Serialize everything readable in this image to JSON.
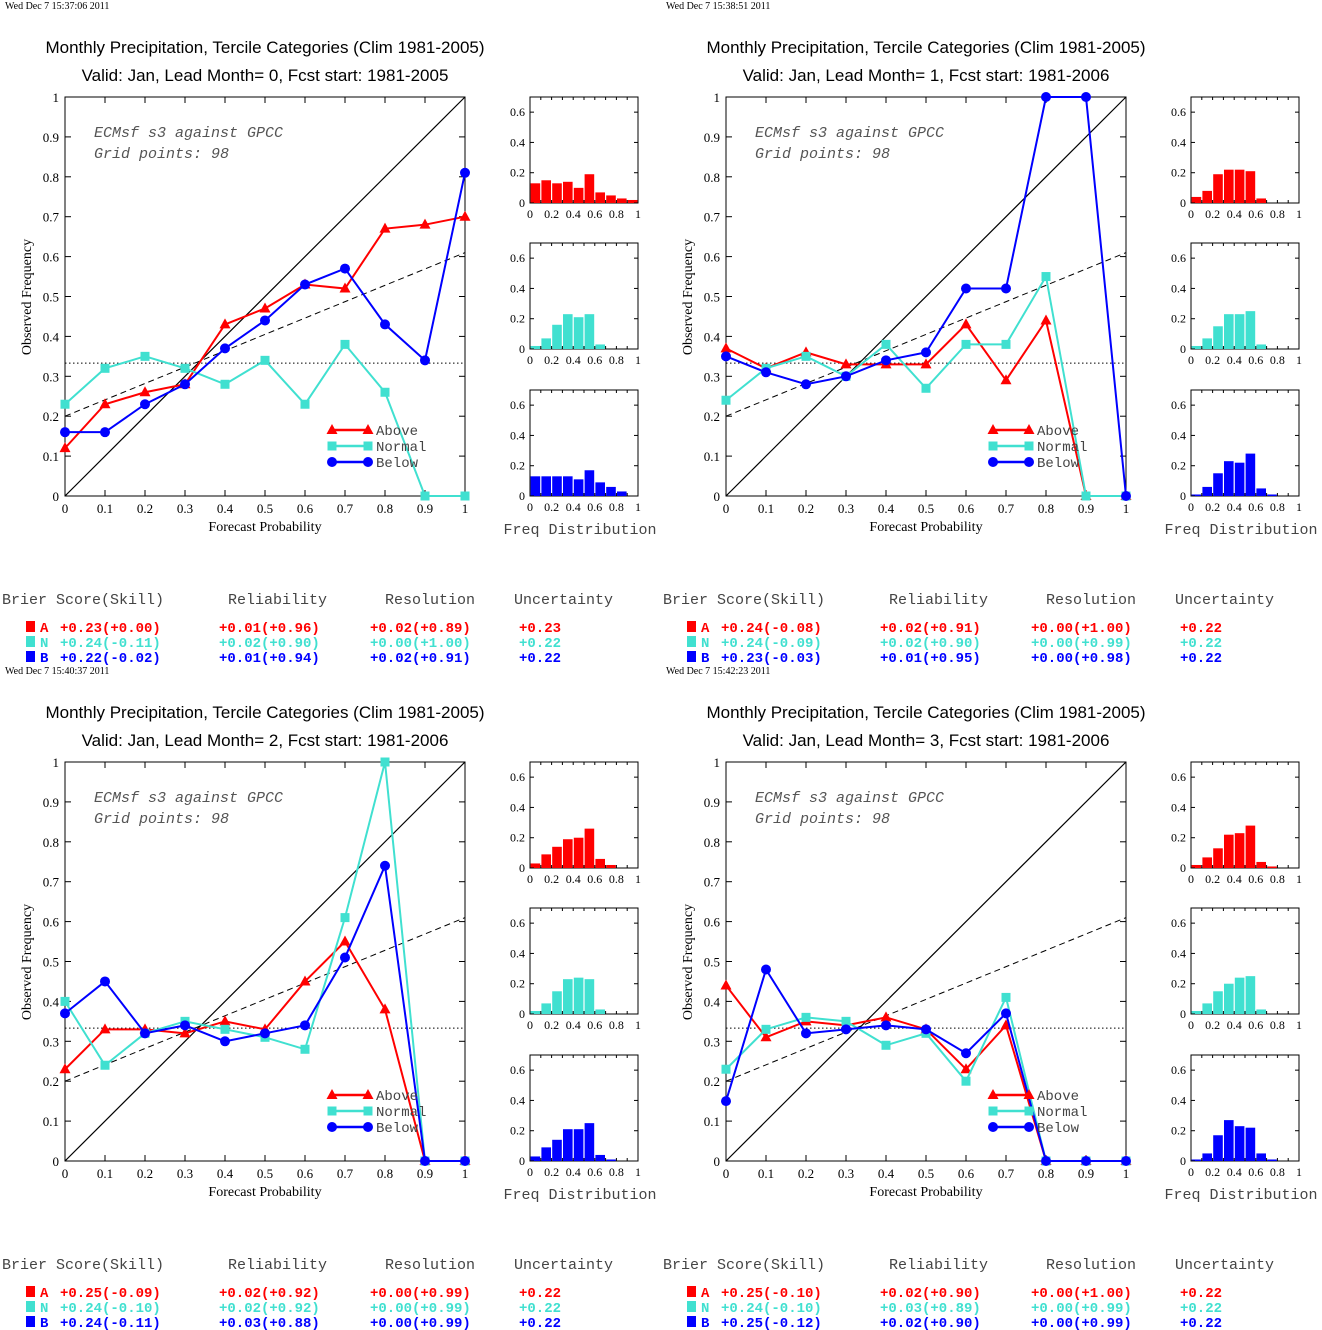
{
  "colors": {
    "above": "#ff0000",
    "normal": "#40e0d0",
    "below": "#0000ff"
  },
  "chart_data": [
    {
      "type": "line",
      "timestamp": "Wed Dec  7 15:37:06 2011",
      "title": "Monthly Precipitation, Tercile Categories (Clim 1981-2005)",
      "subtitle": "Valid: Jan, Lead Month= 0, Fcst start: 1981-2005",
      "annotation": [
        "ECMsf s3 against GPCC",
        "Grid points:    98"
      ],
      "xlabel": "Forecast Probability",
      "ylabel": "Observed Frequency",
      "xlim": [
        0,
        1
      ],
      "ylim": [
        0,
        1
      ],
      "x": [
        0,
        0.1,
        0.2,
        0.3,
        0.4,
        0.5,
        0.6,
        0.7,
        0.8,
        0.9,
        1
      ],
      "series": [
        {
          "name": "Above",
          "color": "#ff0000",
          "marker": "triangle",
          "values": [
            0.12,
            0.23,
            0.26,
            0.28,
            0.43,
            0.47,
            0.53,
            0.52,
            0.67,
            0.68,
            0.7
          ]
        },
        {
          "name": "Normal",
          "color": "#40e0d0",
          "marker": "square",
          "values": [
            0.23,
            0.32,
            0.35,
            0.32,
            0.28,
            0.34,
            0.23,
            0.38,
            0.26,
            0.0,
            0.0
          ]
        },
        {
          "name": "Below",
          "color": "#0000ff",
          "marker": "circle",
          "values": [
            0.16,
            0.16,
            0.23,
            0.28,
            0.37,
            0.44,
            0.53,
            0.57,
            0.43,
            0.34,
            0.81
          ]
        }
      ],
      "reference_lines": {
        "diagonal": [
          [
            0,
            0
          ],
          [
            1,
            1
          ]
        ],
        "climatology": 0.333,
        "skill": [
          [
            0,
            0.2
          ],
          [
            1,
            0.61
          ]
        ]
      },
      "freq_distribution": {
        "xlabel": "Freq Distribution",
        "bins": [
          0,
          0.1,
          0.2,
          0.3,
          0.4,
          0.5,
          0.6,
          0.7,
          0.8,
          0.9
        ],
        "above": [
          0.13,
          0.15,
          0.13,
          0.14,
          0.1,
          0.19,
          0.07,
          0.05,
          0.03,
          0.02
        ],
        "normal": [
          0.02,
          0.07,
          0.16,
          0.23,
          0.21,
          0.23,
          0.03,
          0.0,
          0.0,
          0.0
        ],
        "below": [
          0.13,
          0.13,
          0.13,
          0.13,
          0.11,
          0.17,
          0.09,
          0.06,
          0.03,
          0.0
        ]
      },
      "scores": {
        "header": [
          "Brier Score(Skill)",
          "Reliability",
          "Resolution",
          "Uncertainty"
        ],
        "rows": [
          {
            "cat": "A",
            "brier": "+0.23(+0.00)",
            "rel": "+0.01(+0.96)",
            "res": "+0.02(+0.89)",
            "unc": "+0.23"
          },
          {
            "cat": "N",
            "brier": "+0.24(-0.11)",
            "rel": "+0.02(+0.90)",
            "res": "+0.00(+1.00)",
            "unc": "+0.22"
          },
          {
            "cat": "B",
            "brier": "+0.22(-0.02)",
            "rel": "+0.01(+0.94)",
            "res": "+0.02(+0.91)",
            "unc": "+0.22"
          }
        ]
      }
    },
    {
      "type": "line",
      "timestamp": "Wed Dec  7 15:38:51 2011",
      "title": "Monthly Precipitation, Tercile Categories (Clim 1981-2005)",
      "subtitle": "Valid: Jan, Lead Month= 1, Fcst start: 1981-2006",
      "annotation": [
        "ECMsf s3 against GPCC",
        "Grid points:    98"
      ],
      "xlabel": "Forecast Probability",
      "ylabel": "Observed Frequency",
      "xlim": [
        0,
        1
      ],
      "ylim": [
        0,
        1
      ],
      "x": [
        0,
        0.1,
        0.2,
        0.3,
        0.4,
        0.5,
        0.6,
        0.7,
        0.8,
        0.9,
        1
      ],
      "series": [
        {
          "name": "Above",
          "color": "#ff0000",
          "marker": "triangle",
          "values": [
            0.37,
            0.32,
            0.36,
            0.33,
            0.33,
            0.33,
            0.43,
            0.29,
            0.44,
            0.0,
            0.0
          ]
        },
        {
          "name": "Normal",
          "color": "#40e0d0",
          "marker": "square",
          "values": [
            0.24,
            0.32,
            0.35,
            0.3,
            0.38,
            0.27,
            0.38,
            0.38,
            0.55,
            0.0,
            0.0
          ]
        },
        {
          "name": "Below",
          "color": "#0000ff",
          "marker": "circle",
          "values": [
            0.35,
            0.31,
            0.28,
            0.3,
            0.34,
            0.36,
            0.52,
            0.52,
            1.0,
            1.0,
            0.0
          ]
        }
      ],
      "reference_lines": {
        "diagonal": [
          [
            0,
            0
          ],
          [
            1,
            1
          ]
        ],
        "climatology": 0.333,
        "skill": [
          [
            0,
            0.2
          ],
          [
            1,
            0.61
          ]
        ]
      },
      "freq_distribution": {
        "xlabel": "Freq Distribution",
        "bins": [
          0,
          0.1,
          0.2,
          0.3,
          0.4,
          0.5,
          0.6,
          0.7,
          0.8,
          0.9
        ],
        "above": [
          0.04,
          0.08,
          0.19,
          0.22,
          0.22,
          0.21,
          0.03,
          0.0,
          0.0,
          0.0
        ],
        "normal": [
          0.02,
          0.07,
          0.15,
          0.23,
          0.23,
          0.25,
          0.03,
          0.0,
          0.0,
          0.0
        ],
        "below": [
          0.01,
          0.06,
          0.15,
          0.23,
          0.22,
          0.28,
          0.05,
          0.01,
          0.0,
          0.0
        ]
      },
      "scores": {
        "header": [
          "Brier Score(Skill)",
          "Reliability",
          "Resolution",
          "Uncertainty"
        ],
        "rows": [
          {
            "cat": "A",
            "brier": "+0.24(-0.08)",
            "rel": "+0.02(+0.91)",
            "res": "+0.00(+1.00)",
            "unc": "+0.22"
          },
          {
            "cat": "N",
            "brier": "+0.24(-0.09)",
            "rel": "+0.02(+0.90)",
            "res": "+0.00(+0.99)",
            "unc": "+0.22"
          },
          {
            "cat": "B",
            "brier": "+0.23(-0.03)",
            "rel": "+0.01(+0.95)",
            "res": "+0.00(+0.98)",
            "unc": "+0.22"
          }
        ]
      }
    },
    {
      "type": "line",
      "timestamp": "Wed Dec  7 15:40:37 2011",
      "title": "Monthly Precipitation, Tercile Categories (Clim 1981-2005)",
      "subtitle": "Valid: Jan, Lead Month= 2, Fcst start: 1981-2006",
      "annotation": [
        "ECMsf s3 against GPCC",
        "Grid points:    98"
      ],
      "xlabel": "Forecast Probability",
      "ylabel": "Observed Frequency",
      "xlim": [
        0,
        1
      ],
      "ylim": [
        0,
        1
      ],
      "x": [
        0,
        0.1,
        0.2,
        0.3,
        0.4,
        0.5,
        0.6,
        0.7,
        0.8,
        0.9,
        1
      ],
      "series": [
        {
          "name": "Above",
          "color": "#ff0000",
          "marker": "triangle",
          "values": [
            0.23,
            0.33,
            0.33,
            0.32,
            0.35,
            0.33,
            0.45,
            0.55,
            0.38,
            0.0,
            0.0
          ]
        },
        {
          "name": "Normal",
          "color": "#40e0d0",
          "marker": "square",
          "values": [
            0.4,
            0.24,
            0.32,
            0.35,
            0.33,
            0.31,
            0.28,
            0.61,
            1.0,
            0.0,
            0.0
          ]
        },
        {
          "name": "Below",
          "color": "#0000ff",
          "marker": "circle",
          "values": [
            0.37,
            0.45,
            0.32,
            0.34,
            0.3,
            0.32,
            0.34,
            0.51,
            0.74,
            0.0,
            0.0
          ]
        }
      ],
      "reference_lines": {
        "diagonal": [
          [
            0,
            0
          ],
          [
            1,
            1
          ]
        ],
        "climatology": 0.333,
        "skill": [
          [
            0,
            0.2
          ],
          [
            1,
            0.61
          ]
        ]
      },
      "freq_distribution": {
        "xlabel": "Freq Distribution",
        "bins": [
          0,
          0.1,
          0.2,
          0.3,
          0.4,
          0.5,
          0.6,
          0.7,
          0.8,
          0.9
        ],
        "above": [
          0.03,
          0.09,
          0.14,
          0.19,
          0.2,
          0.26,
          0.06,
          0.02,
          0.0,
          0.0
        ],
        "normal": [
          0.02,
          0.07,
          0.15,
          0.23,
          0.24,
          0.23,
          0.03,
          0.0,
          0.0,
          0.0
        ],
        "below": [
          0.03,
          0.09,
          0.14,
          0.21,
          0.21,
          0.25,
          0.04,
          0.01,
          0.0,
          0.0
        ]
      },
      "scores": {
        "header": [
          "Brier Score(Skill)",
          "Reliability",
          "Resolution",
          "Uncertainty"
        ],
        "rows": [
          {
            "cat": "A",
            "brier": "+0.25(-0.09)",
            "rel": "+0.02(+0.92)",
            "res": "+0.00(+0.99)",
            "unc": "+0.22"
          },
          {
            "cat": "N",
            "brier": "+0.24(-0.10)",
            "rel": "+0.02(+0.92)",
            "res": "+0.00(+0.99)",
            "unc": "+0.22"
          },
          {
            "cat": "B",
            "brier": "+0.24(-0.11)",
            "rel": "+0.03(+0.88)",
            "res": "+0.00(+0.99)",
            "unc": "+0.22"
          }
        ]
      }
    },
    {
      "type": "line",
      "timestamp": "Wed Dec  7 15:42:23 2011",
      "title": "Monthly Precipitation, Tercile Categories (Clim 1981-2005)",
      "subtitle": "Valid: Jan, Lead Month= 3, Fcst start: 1981-2006",
      "annotation": [
        "ECMsf s3 against GPCC",
        "Grid points:    98"
      ],
      "xlabel": "Forecast Probability",
      "ylabel": "Observed Frequency",
      "xlim": [
        0,
        1
      ],
      "ylim": [
        0,
        1
      ],
      "x": [
        0,
        0.1,
        0.2,
        0.3,
        0.4,
        0.5,
        0.6,
        0.7,
        0.8,
        0.9,
        1
      ],
      "series": [
        {
          "name": "Above",
          "color": "#ff0000",
          "marker": "triangle",
          "values": [
            0.44,
            0.31,
            0.35,
            0.34,
            0.36,
            0.33,
            0.23,
            0.34,
            0.0,
            0.0,
            0.0
          ]
        },
        {
          "name": "Normal",
          "color": "#40e0d0",
          "marker": "square",
          "values": [
            0.23,
            0.33,
            0.36,
            0.35,
            0.29,
            0.32,
            0.2,
            0.41,
            0.0,
            0.0,
            0.0
          ]
        },
        {
          "name": "Below",
          "color": "#0000ff",
          "marker": "circle",
          "values": [
            0.15,
            0.48,
            0.32,
            0.33,
            0.34,
            0.33,
            0.27,
            0.37,
            0.0,
            0.0,
            0.0
          ]
        }
      ],
      "reference_lines": {
        "diagonal": [
          [
            0,
            0
          ],
          [
            1,
            1
          ]
        ],
        "climatology": 0.333,
        "skill": [
          [
            0,
            0.2
          ],
          [
            1,
            0.61
          ]
        ]
      },
      "freq_distribution": {
        "xlabel": "Freq Distribution",
        "bins": [
          0,
          0.1,
          0.2,
          0.3,
          0.4,
          0.5,
          0.6,
          0.7,
          0.8,
          0.9
        ],
        "above": [
          0.02,
          0.07,
          0.13,
          0.22,
          0.23,
          0.28,
          0.04,
          0.01,
          0.0,
          0.0
        ],
        "normal": [
          0.02,
          0.07,
          0.15,
          0.2,
          0.24,
          0.25,
          0.03,
          0.0,
          0.0,
          0.0
        ],
        "below": [
          0.01,
          0.05,
          0.17,
          0.27,
          0.23,
          0.22,
          0.05,
          0.01,
          0.0,
          0.0
        ]
      },
      "scores": {
        "header": [
          "Brier Score(Skill)",
          "Reliability",
          "Resolution",
          "Uncertainty"
        ],
        "rows": [
          {
            "cat": "A",
            "brier": "+0.25(-0.10)",
            "rel": "+0.02(+0.90)",
            "res": "+0.00(+1.00)",
            "unc": "+0.22"
          },
          {
            "cat": "N",
            "brier": "+0.24(-0.10)",
            "rel": "+0.03(+0.89)",
            "res": "+0.00(+0.99)",
            "unc": "+0.22"
          },
          {
            "cat": "B",
            "brier": "+0.25(-0.12)",
            "rel": "+0.02(+0.90)",
            "res": "+0.00(+0.99)",
            "unc": "+0.22"
          }
        ]
      }
    }
  ]
}
